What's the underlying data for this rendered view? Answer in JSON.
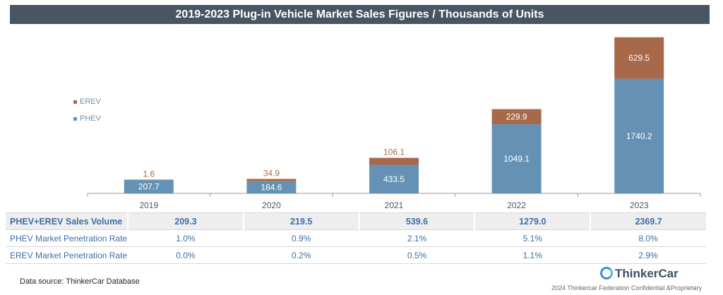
{
  "chart_data": {
    "type": "bar",
    "stacked": true,
    "title": "2019-2023 Plug-in Vehicle Market Sales Figures / Thousands of Units",
    "categories": [
      "2019",
      "2020",
      "2021",
      "2022",
      "2023"
    ],
    "series": [
      {
        "name": "PHEV",
        "values": [
          207.7,
          184.6,
          433.5,
          1049.1,
          1740.2
        ],
        "color": "#6592b4"
      },
      {
        "name": "EREV",
        "values": [
          1.6,
          34.9,
          106.1,
          229.9,
          629.5
        ],
        "color": "#a8684a"
      }
    ],
    "ylim": [
      0,
      2400
    ],
    "grid": false,
    "legend": {
      "position": "left",
      "items": [
        "EREV",
        "PHEV"
      ]
    }
  },
  "table": {
    "rows": [
      {
        "label": "PHEV+EREV Sales Volume",
        "values": [
          "209.3",
          "219.5",
          "539.6",
          "1279.0",
          "2369.7"
        ]
      },
      {
        "label": "PHEV Market Penetration Rate",
        "values": [
          "1.0%",
          "0.9%",
          "2.1%",
          "5.1%",
          "8.0%"
        ]
      },
      {
        "label": "EREV Market Penetration Rate",
        "values": [
          "0.0%",
          "0.2%",
          "0.5%",
          "1.1%",
          "2.9%"
        ]
      }
    ]
  },
  "footer": {
    "source": "Data source: ThinkerCar Database",
    "logo": "ThinkerCar",
    "copyright": "2024 Thinkercar Federation Confidential &Proprietary"
  }
}
